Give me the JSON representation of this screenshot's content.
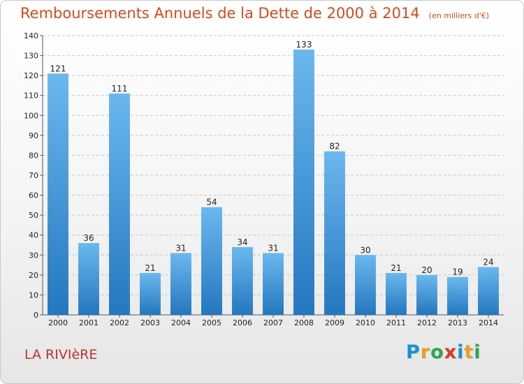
{
  "header": {
    "title": "Remboursements Annuels de la Dette de 2000 à 2014",
    "subtitle": "(en milliers d'€)"
  },
  "commune": "LA RIVIèRE",
  "brand": {
    "name": "Proxiti",
    "letter_colors": [
      "#1a8fd6",
      "#e8a020",
      "#2aa84a",
      "#d43a2a",
      "#1a8fd6",
      "#e8a020",
      "#2aa84a"
    ]
  },
  "colors": {
    "bar_light": "#6bb8ef",
    "bar_dark": "#2477bf",
    "title": "#d44a1e",
    "commune": "#c0322e"
  },
  "chart_data": {
    "type": "bar",
    "categories": [
      "2000",
      "2001",
      "2002",
      "2003",
      "2004",
      "2005",
      "2006",
      "2007",
      "2008",
      "2009",
      "2010",
      "2011",
      "2012",
      "2013",
      "2014"
    ],
    "values": [
      121,
      36,
      111,
      21,
      31,
      54,
      34,
      31,
      133,
      82,
      30,
      21,
      20,
      19,
      24
    ],
    "title": "Remboursements Annuels de la Dette de 2000 à 2014",
    "subtitle": "(en milliers d'€)",
    "ylim": [
      0,
      140
    ],
    "yticks": [
      0,
      10,
      20,
      30,
      40,
      50,
      60,
      70,
      80,
      90,
      100,
      110,
      120,
      130,
      140
    ],
    "grid": true,
    "legend": "none"
  }
}
